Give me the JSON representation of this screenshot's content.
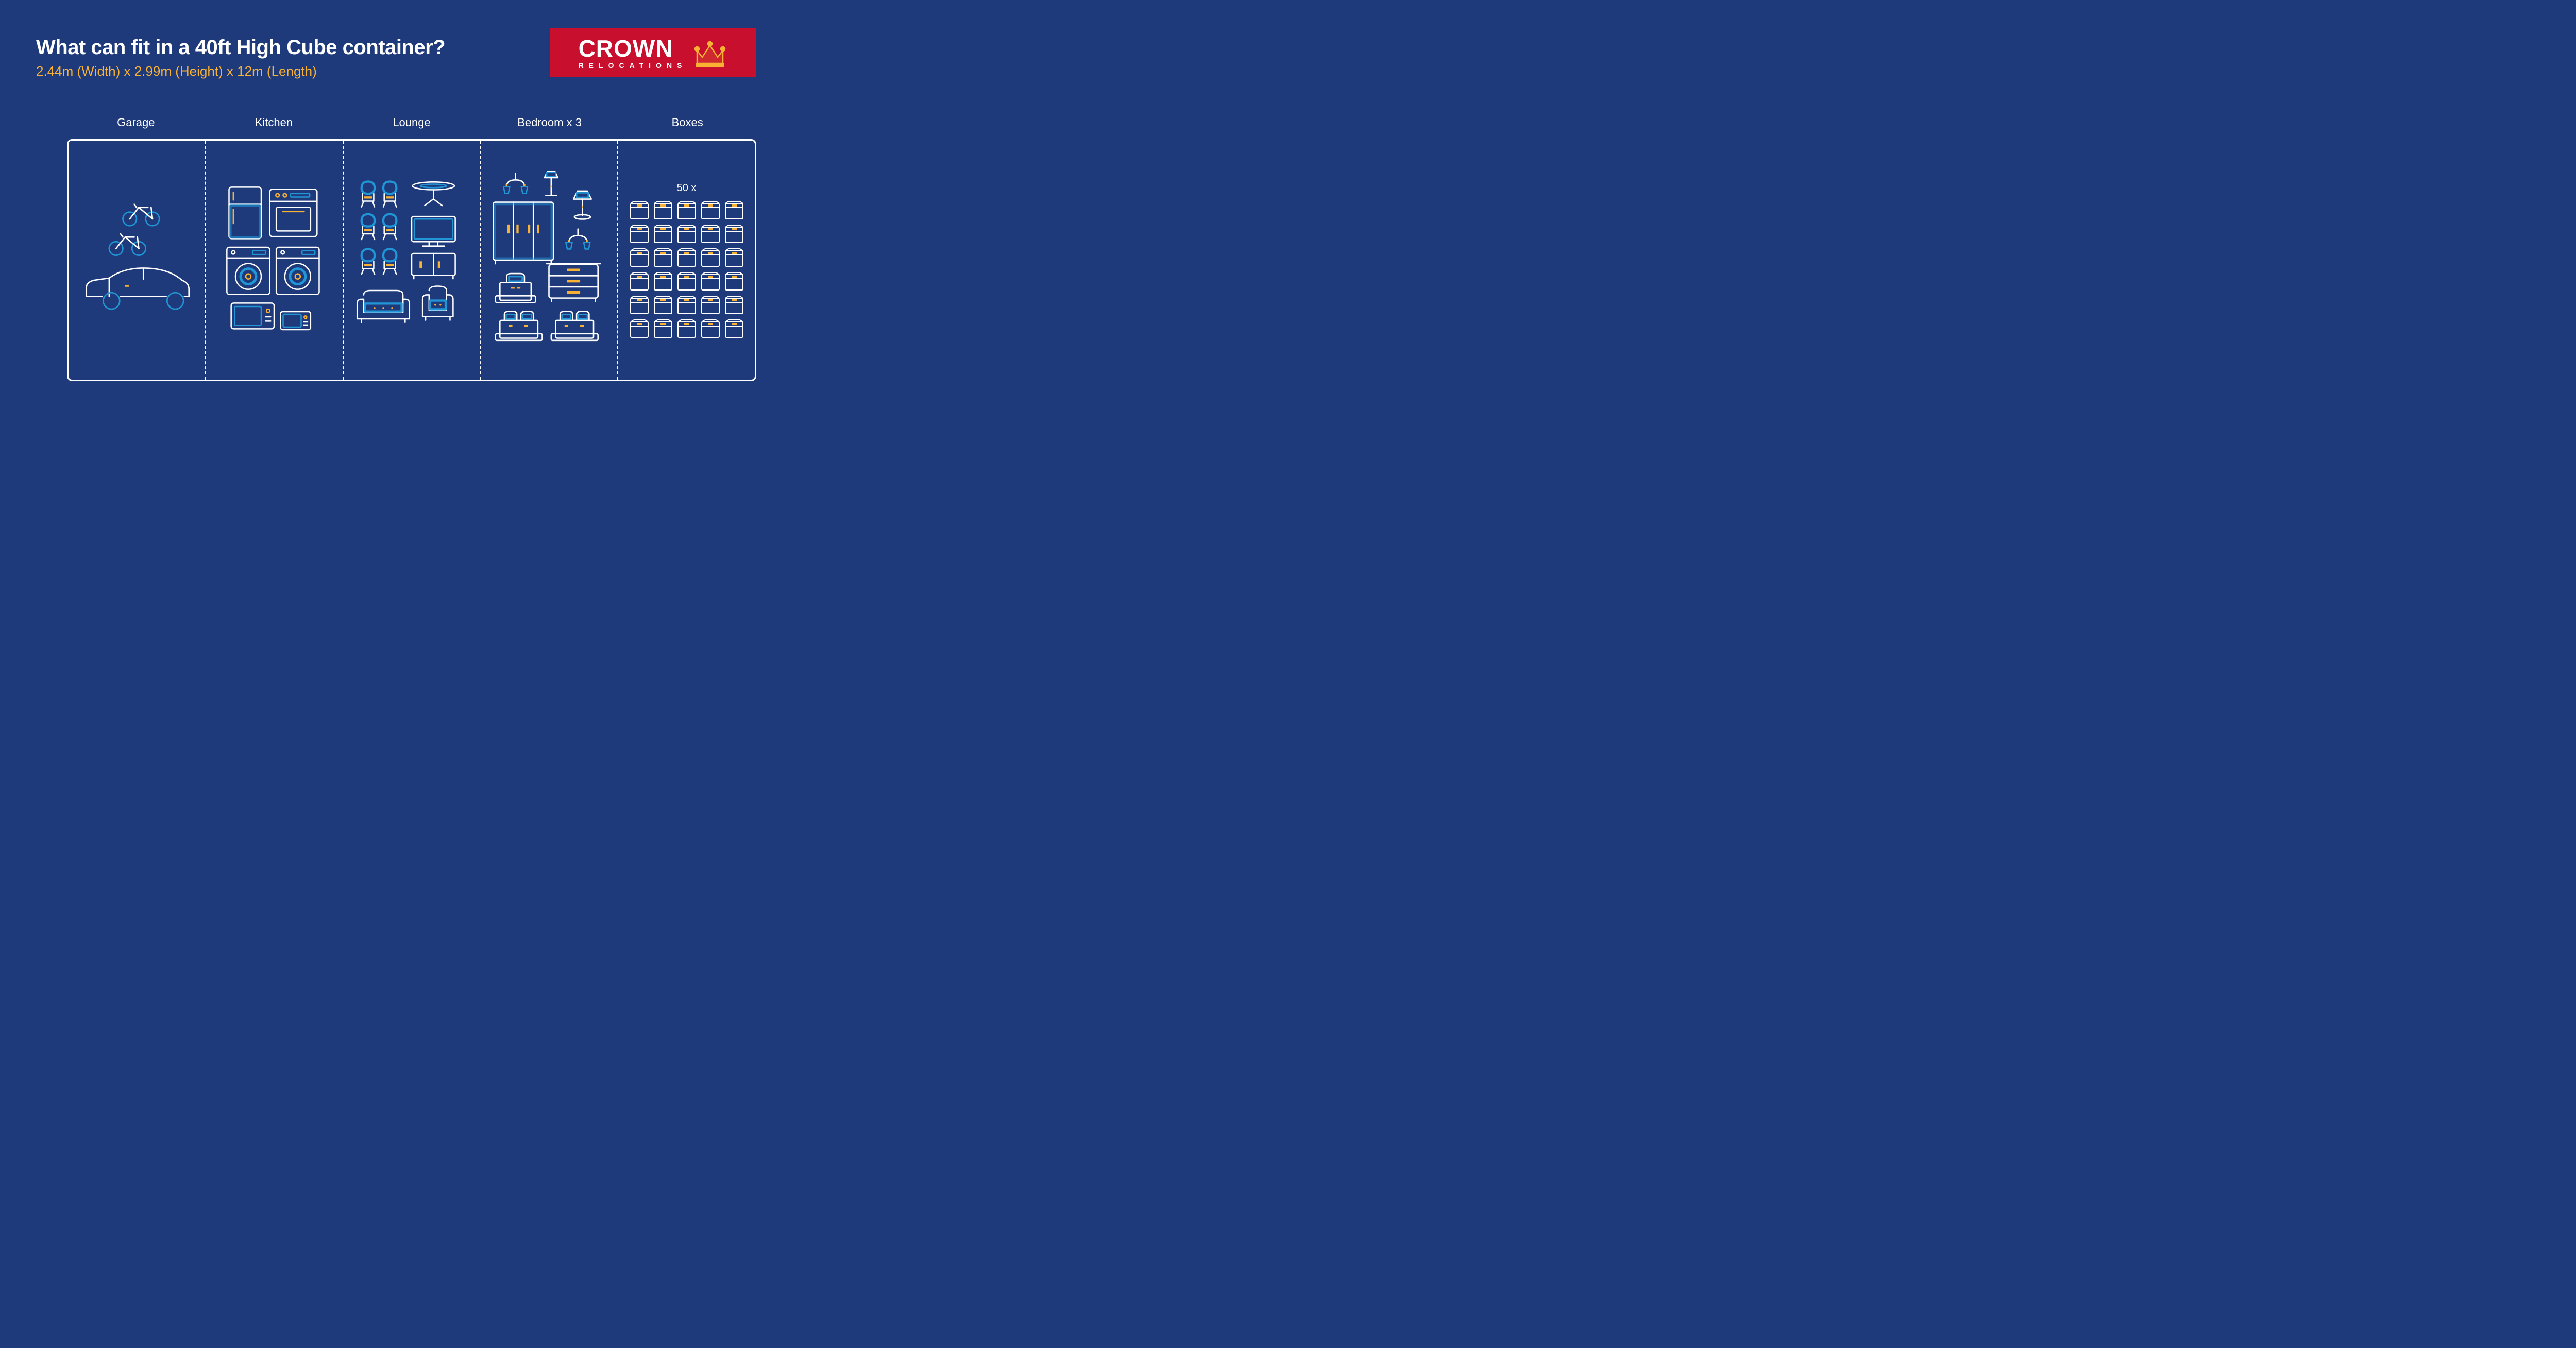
{
  "colors": {
    "background": "#1e3a7b",
    "white": "#ffffff",
    "yellow": "#f9b233",
    "accent_blue": "#2196d6",
    "dark_accent": "#0d2b5e",
    "logo_bg": "#c8102e"
  },
  "header": {
    "title": "What can fit in a 40ft High Cube container?",
    "subtitle": "2.44m (Width) x 2.99m (Height) x 12m (Length)"
  },
  "logo": {
    "word": "CROWN",
    "sub": "RELOCATIONS"
  },
  "sections": [
    {
      "label": "Garage"
    },
    {
      "label": "Kitchen"
    },
    {
      "label": "Lounge"
    },
    {
      "label": "Bedroom x 3"
    },
    {
      "label": "Boxes"
    }
  ],
  "boxes": {
    "count_label": "50 x",
    "grid_rows": 6,
    "grid_cols": 5
  },
  "stroke_width": 3
}
